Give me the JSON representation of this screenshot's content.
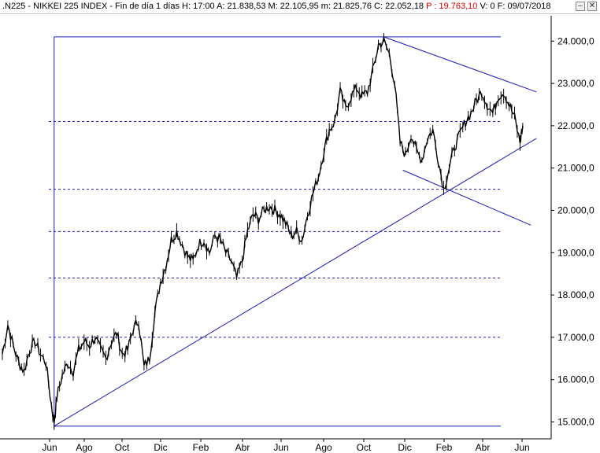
{
  "header": {
    "info": ".N225 - NIKKEI 225 INDEX - Fin de día 1 días  H: 17:00  A: 21.838,53  M: 22.105,95  m: 21.825,76  C: 22.052,18",
    "p_value": "P : 19.763,10",
    "rest": "V: 0  F: 09/07/2018",
    "btn_minimize": "–",
    "btn_close": "✕"
  },
  "chart_data": {
    "type": "candlestick",
    "title": ".N225 - NIKKEI 225 INDEX",
    "x_ticks": [
      "Jun",
      "Ago",
      "Oct",
      "Dic",
      "Feb",
      "Abr",
      "Jun",
      "Ago",
      "Oct",
      "Dic",
      "Feb",
      "Abr",
      "Jun"
    ],
    "y_ticks": [
      15000,
      16000,
      17000,
      18000,
      19000,
      20000,
      21000,
      22000,
      23000,
      24000
    ],
    "y_tick_labels": [
      "15.000,0",
      "16.000,0",
      "17.000,0",
      "18.000,0",
      "19.000,0",
      "20.000,0",
      "21.000,0",
      "22.000,0",
      "23.000,0",
      "24.000,0"
    ],
    "horizontal_levels": [
      14900,
      17000,
      18400,
      19500,
      20500,
      22100,
      24100
    ],
    "colors": {
      "price": "#000000",
      "drawings": "#1a1ab4",
      "grid": "#1a1ab4"
    },
    "price_path": [
      [
        0,
        16600
      ],
      [
        2,
        17300
      ],
      [
        4,
        16800
      ],
      [
        6,
        16400
      ],
      [
        8,
        16200
      ],
      [
        10,
        16700
      ],
      [
        12,
        16900
      ],
      [
        14,
        16600
      ],
      [
        16,
        16400
      ],
      [
        18,
        15400
      ],
      [
        19,
        15000
      ],
      [
        20,
        15600
      ],
      [
        22,
        16100
      ],
      [
        24,
        16400
      ],
      [
        26,
        16200
      ],
      [
        28,
        16700
      ],
      [
        30,
        16900
      ],
      [
        32,
        16800
      ],
      [
        34,
        17000
      ],
      [
        36,
        16700
      ],
      [
        38,
        16500
      ],
      [
        40,
        16900
      ],
      [
        42,
        17100
      ],
      [
        44,
        16600
      ],
      [
        46,
        16700
      ],
      [
        48,
        17200
      ],
      [
        50,
        17400
      ],
      [
        52,
        16300
      ],
      [
        54,
        16500
      ],
      [
        56,
        17600
      ],
      [
        58,
        18300
      ],
      [
        60,
        18700
      ],
      [
        62,
        19300
      ],
      [
        64,
        19500
      ],
      [
        66,
        19200
      ],
      [
        68,
        18900
      ],
      [
        70,
        18800
      ],
      [
        72,
        19200
      ],
      [
        74,
        19300
      ],
      [
        76,
        19000
      ],
      [
        78,
        19400
      ],
      [
        80,
        19300
      ],
      [
        82,
        19000
      ],
      [
        84,
        18800
      ],
      [
        86,
        18400
      ],
      [
        88,
        18800
      ],
      [
        90,
        19500
      ],
      [
        92,
        19900
      ],
      [
        94,
        19800
      ],
      [
        96,
        20000
      ],
      [
        98,
        20100
      ],
      [
        100,
        20000
      ],
      [
        102,
        19900
      ],
      [
        104,
        19700
      ],
      [
        106,
        19400
      ],
      [
        108,
        19500
      ],
      [
        110,
        19300
      ],
      [
        112,
        19900
      ],
      [
        114,
        20400
      ],
      [
        116,
        20800
      ],
      [
        118,
        21400
      ],
      [
        120,
        21900
      ],
      [
        122,
        22100
      ],
      [
        124,
        22800
      ],
      [
        126,
        22400
      ],
      [
        128,
        22700
      ],
      [
        130,
        22900
      ],
      [
        132,
        22700
      ],
      [
        134,
        22800
      ],
      [
        136,
        23300
      ],
      [
        138,
        23900
      ],
      [
        140,
        24000
      ],
      [
        142,
        23700
      ],
      [
        144,
        23000
      ],
      [
        146,
        21600
      ],
      [
        148,
        21300
      ],
      [
        150,
        21800
      ],
      [
        152,
        21400
      ],
      [
        154,
        21200
      ],
      [
        156,
        21700
      ],
      [
        158,
        21900
      ],
      [
        160,
        21200
      ],
      [
        162,
        20500
      ],
      [
        164,
        21000
      ],
      [
        166,
        21500
      ],
      [
        168,
        21800
      ],
      [
        170,
        22100
      ],
      [
        172,
        22300
      ],
      [
        174,
        22600
      ],
      [
        176,
        22800
      ],
      [
        178,
        22500
      ],
      [
        180,
        22300
      ],
      [
        182,
        22700
      ],
      [
        184,
        22800
      ],
      [
        186,
        22500
      ],
      [
        188,
        22200
      ],
      [
        190,
        21600
      ],
      [
        191,
        22000
      ]
    ],
    "trendlines": [
      {
        "x1": 19,
        "y1": 14900,
        "x2": 196,
        "y2": 21700
      },
      {
        "x1": 140,
        "y1": 24100,
        "x2": 196,
        "y2": 22800
      },
      {
        "x1": 147,
        "y1": 20950,
        "x2": 194,
        "y2": 19650
      }
    ],
    "vertical_segment": {
      "x": 19,
      "y_from": 14850,
      "y_to": 24100
    }
  }
}
